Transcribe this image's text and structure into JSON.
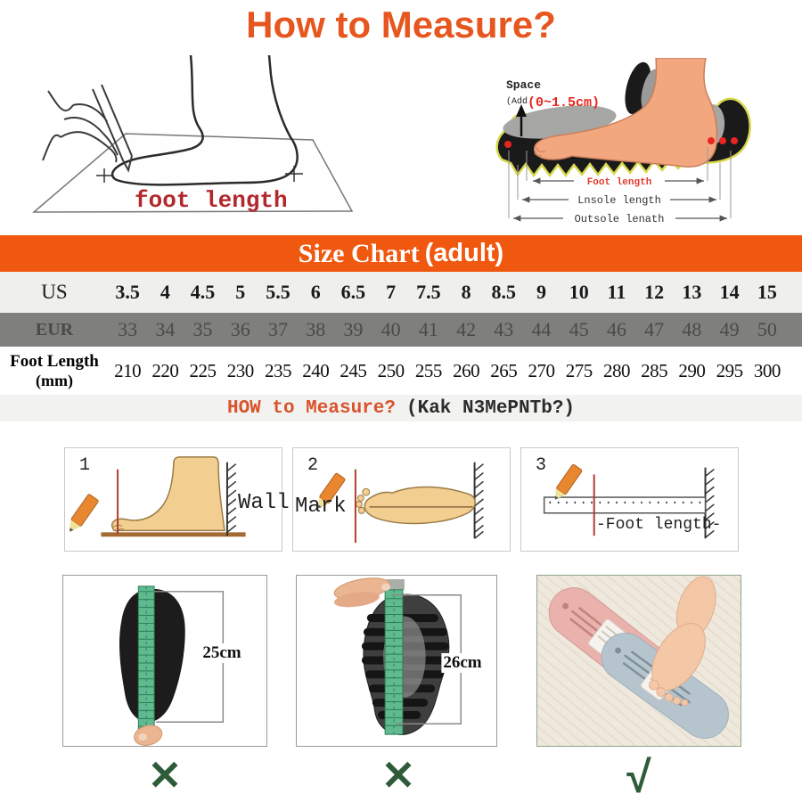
{
  "title": "How to Measure?",
  "colors": {
    "orange_bar": "#F0570F",
    "title_orange": "#E6561E",
    "dark_red_label": "#B3282D",
    "red_accent": "#E8251F",
    "green_mark": "#2E5C3A",
    "tape_green": "#5FBA8F",
    "us_row_bg": "#EFEFED",
    "eur_row_bg": "#7F7F7D",
    "strip_bg": "#F2F2F0"
  },
  "trace_diagram": {
    "label": "foot length"
  },
  "shoe_diagram": {
    "space_label": "Space",
    "add_label": "(Add",
    "range_label": "(0~1.5cm)",
    "arrow_labels": [
      "Foot length",
      "Lnsole length",
      "Outsole lenath"
    ]
  },
  "size_chart": {
    "heading_serif": "Size Chart",
    "heading_suffix": "(adult)",
    "rows": [
      {
        "label": "US",
        "values": [
          "3.5",
          "4",
          "4.5",
          "5",
          "5.5",
          "6",
          "6.5",
          "7",
          "7.5",
          "8",
          "8.5",
          "9",
          "10",
          "11",
          "12",
          "13",
          "14",
          "15"
        ]
      },
      {
        "label": "EUR",
        "values": [
          "33",
          "34",
          "35",
          "36",
          "37",
          "38",
          "39",
          "40",
          "41",
          "42",
          "43",
          "44",
          "45",
          "46",
          "47",
          "48",
          "49",
          "50"
        ]
      },
      {
        "label": "Foot Length",
        "sublabel": "(mm)",
        "values": [
          "210",
          "220",
          "225",
          "230",
          "235",
          "240",
          "245",
          "250",
          "255",
          "260",
          "265",
          "270",
          "275",
          "280",
          "285",
          "290",
          "295",
          "300"
        ]
      }
    ]
  },
  "measure_heading": {
    "primary": "HOW to Measure?",
    "secondary": "(Kak N3MePNTb?)"
  },
  "steps": [
    {
      "number": "1",
      "label": "Wall"
    },
    {
      "number": "2",
      "label": "Mark"
    },
    {
      "number": "3",
      "label": "-Foot length-"
    }
  ],
  "examples": [
    {
      "measurement": "25cm",
      "verdict": "✕"
    },
    {
      "measurement": "26cm",
      "verdict": "✕"
    },
    {
      "measurement": "",
      "verdict": "√"
    }
  ]
}
